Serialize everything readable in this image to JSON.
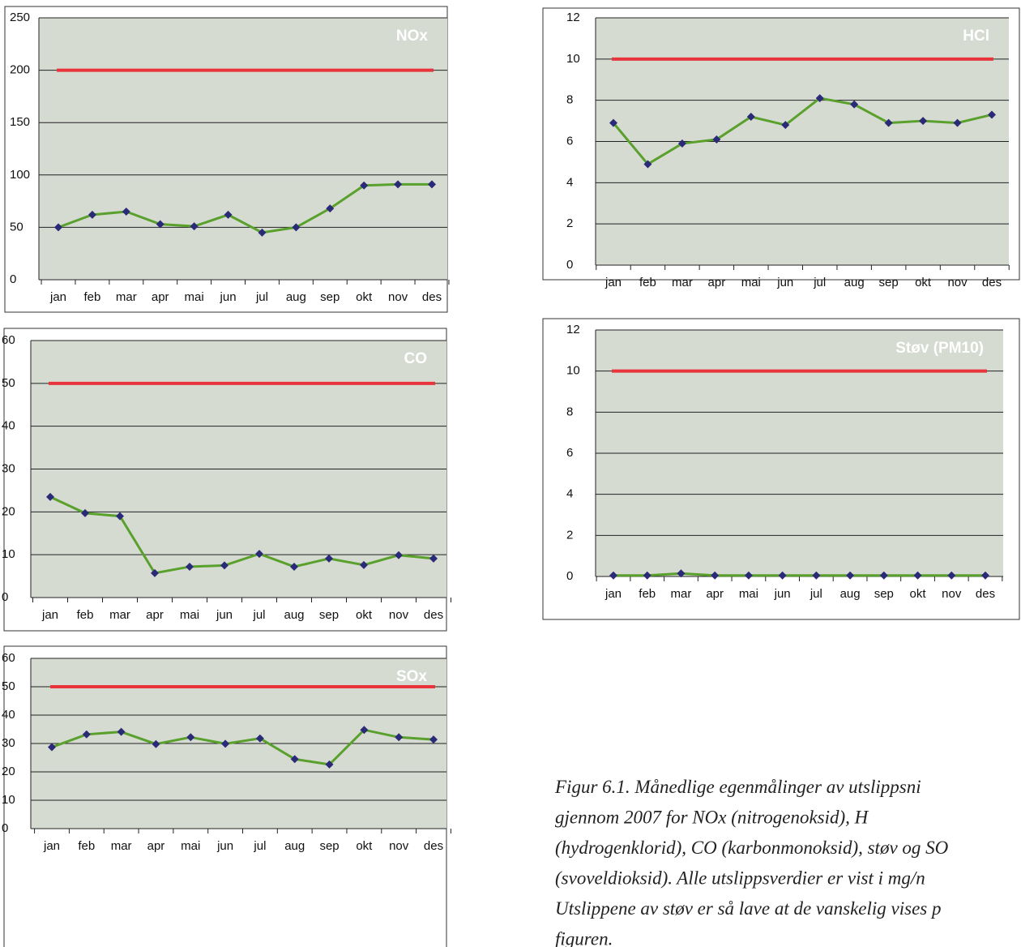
{
  "chart_data": [
    {
      "type": "line",
      "title": "NOx",
      "categories": [
        "jan",
        "feb",
        "mar",
        "apr",
        "mai",
        "jun",
        "jul",
        "aug",
        "sep",
        "okt",
        "nov",
        "des"
      ],
      "series": [
        {
          "color": "#5aa02c",
          "marker_color": "#2b2a78",
          "values": [
            50,
            62,
            65,
            53,
            51,
            62,
            45,
            50,
            68,
            90,
            91,
            91
          ]
        }
      ],
      "limit": 200,
      "limit_color": "#e8343a",
      "ylim": [
        0,
        250
      ],
      "yticks": [
        0,
        50,
        100,
        150,
        200,
        250
      ],
      "grid": true
    },
    {
      "type": "line",
      "title": "HCl",
      "categories": [
        "jan",
        "feb",
        "mar",
        "apr",
        "mai",
        "jun",
        "jul",
        "aug",
        "sep",
        "okt",
        "nov",
        "des"
      ],
      "series": [
        {
          "color": "#5aa02c",
          "marker_color": "#2b2a78",
          "values": [
            6.9,
            4.9,
            5.9,
            6.1,
            7.2,
            6.8,
            8.1,
            7.8,
            6.9,
            7.0,
            6.9,
            7.3
          ]
        }
      ],
      "limit": 10,
      "limit_color": "#e8343a",
      "ylim": [
        0,
        12
      ],
      "yticks": [
        0,
        2,
        4,
        6,
        8,
        10,
        12
      ],
      "grid": true
    },
    {
      "type": "line",
      "title": "CO",
      "categories": [
        "jan",
        "feb",
        "mar",
        "apr",
        "mai",
        "jun",
        "jul",
        "aug",
        "sep",
        "okt",
        "nov",
        "des"
      ],
      "series": [
        {
          "color": "#5aa02c",
          "marker_color": "#2b2a78",
          "values": [
            23.5,
            19.7,
            19,
            5.7,
            7.2,
            7.5,
            10.2,
            7.2,
            9.1,
            7.6,
            9.9,
            9.1
          ]
        }
      ],
      "limit": 50,
      "limit_color": "#e8343a",
      "ylim": [
        0,
        60
      ],
      "yticks": [
        0,
        10,
        20,
        30,
        40,
        50,
        60
      ],
      "grid": true
    },
    {
      "type": "line",
      "title": "Støv (PM10)",
      "categories": [
        "jan",
        "feb",
        "mar",
        "apr",
        "mai",
        "jun",
        "jul",
        "aug",
        "sep",
        "okt",
        "nov",
        "des"
      ],
      "series": [
        {
          "color": "#5aa02c",
          "marker_color": "#2b2a78",
          "values": [
            0.05,
            0.05,
            0.15,
            0.05,
            0.05,
            0.05,
            0.05,
            0.05,
            0.05,
            0.05,
            0.05,
            0.05
          ]
        }
      ],
      "limit": 10,
      "limit_color": "#e8343a",
      "ylim": [
        0,
        12
      ],
      "yticks": [
        0,
        2,
        4,
        6,
        8,
        10,
        12
      ],
      "grid": true
    },
    {
      "type": "line",
      "title": "SOx",
      "categories": [
        "jan",
        "feb",
        "mar",
        "apr",
        "mai",
        "jun",
        "jul",
        "aug",
        "sep",
        "okt",
        "nov",
        "des"
      ],
      "series": [
        {
          "color": "#5aa02c",
          "marker_color": "#2b2a78",
          "values": [
            28.7,
            33.2,
            34.1,
            29.8,
            32.2,
            29.9,
            31.8,
            24.5,
            22.6,
            34.8,
            32.2,
            31.4
          ]
        }
      ],
      "limit": 50,
      "limit_color": "#e8343a",
      "ylim": [
        0,
        60
      ],
      "yticks": [
        0,
        10,
        20,
        30,
        40,
        50,
        60
      ],
      "grid": true
    }
  ],
  "caption": {
    "lines": [
      "Figur 6.1. Månedlige egenmålinger av utslippsni",
      "gjennom 2007 for NOx (nitrogenoksid), H",
      "(hydrogenklorid), CO (karbonmonoksid), støv og SO",
      "(svoveldioksid). Alle utslippsverdier er vist i mg/n",
      "Utslippene av støv er så lave at de vanskelig vises p",
      "figuren."
    ]
  }
}
